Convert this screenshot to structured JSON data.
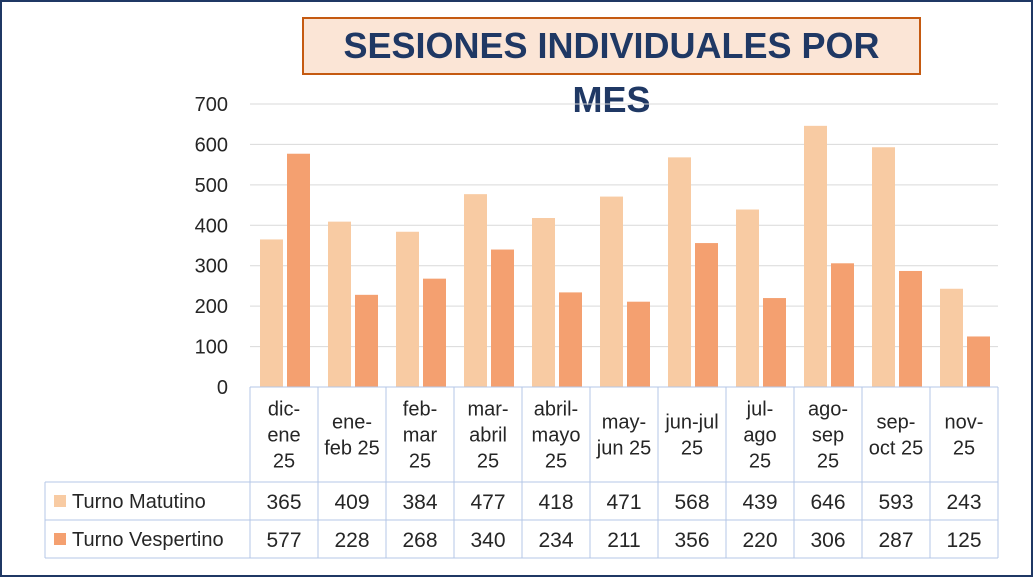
{
  "chart_data": {
    "type": "bar",
    "title": "SESIONES INDIVIDUALES POR MES",
    "categories": [
      [
        "dic-",
        "ene",
        "25"
      ],
      [
        "ene-",
        "feb 25"
      ],
      [
        "feb-",
        "mar",
        "25"
      ],
      [
        "mar-",
        "abril",
        "25"
      ],
      [
        "abril-",
        "mayo",
        "25"
      ],
      [
        "may-",
        "jun 25"
      ],
      [
        "jun-jul",
        "25"
      ],
      [
        "jul-",
        "ago",
        "25"
      ],
      [
        "ago-",
        "sep",
        "25"
      ],
      [
        "sep-",
        "oct 25"
      ],
      [
        "nov-",
        "25"
      ]
    ],
    "series": [
      {
        "name": "Turno Matutino",
        "color": "#f8cba3",
        "values": [
          365,
          409,
          384,
          477,
          418,
          471,
          568,
          439,
          646,
          593,
          243
        ]
      },
      {
        "name": "Turno Vespertino",
        "color": "#f4a070",
        "values": [
          577,
          228,
          268,
          340,
          234,
          211,
          356,
          220,
          306,
          287,
          125
        ]
      }
    ],
    "ylim": [
      0,
      700
    ],
    "yticks": [
      0,
      100,
      200,
      300,
      400,
      500,
      600,
      700
    ],
    "grid": true,
    "legend": "data-table"
  }
}
